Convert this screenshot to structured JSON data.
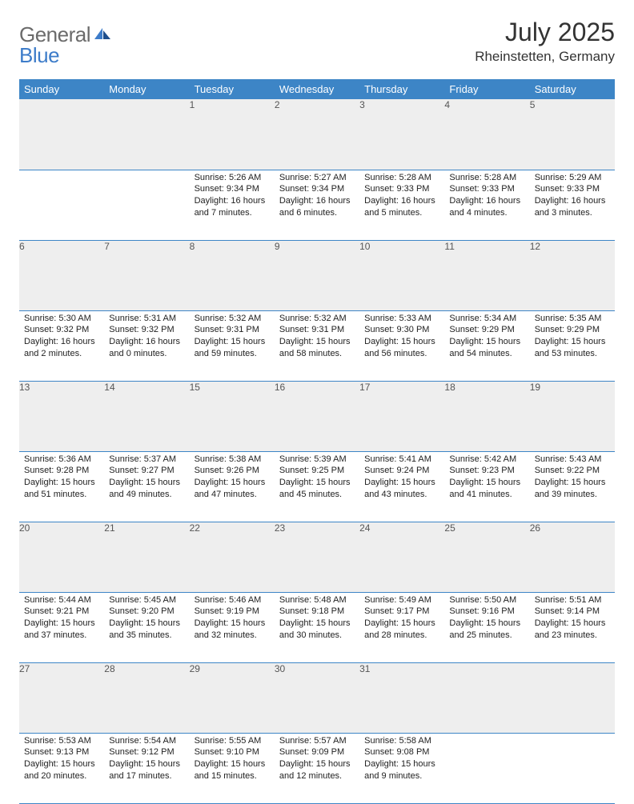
{
  "brand": {
    "part1": "General",
    "part2": "Blue"
  },
  "title": "July 2025",
  "location": "Rheinstetten, Germany",
  "colors": {
    "header_bg": "#3d85c6",
    "header_fg": "#ffffff",
    "daynum_bg": "#eeeeee",
    "daynum_fg": "#555555",
    "rule": "#3d85c6",
    "logo_gray": "#6b6b6b",
    "logo_blue": "#3d7cc9"
  },
  "weekdays": [
    "Sunday",
    "Monday",
    "Tuesday",
    "Wednesday",
    "Thursday",
    "Friday",
    "Saturday"
  ],
  "weeks": [
    [
      null,
      null,
      {
        "n": "1",
        "sr": "5:26 AM",
        "ss": "9:34 PM",
        "dl": "16 hours and 7 minutes."
      },
      {
        "n": "2",
        "sr": "5:27 AM",
        "ss": "9:34 PM",
        "dl": "16 hours and 6 minutes."
      },
      {
        "n": "3",
        "sr": "5:28 AM",
        "ss": "9:33 PM",
        "dl": "16 hours and 5 minutes."
      },
      {
        "n": "4",
        "sr": "5:28 AM",
        "ss": "9:33 PM",
        "dl": "16 hours and 4 minutes."
      },
      {
        "n": "5",
        "sr": "5:29 AM",
        "ss": "9:33 PM",
        "dl": "16 hours and 3 minutes."
      }
    ],
    [
      {
        "n": "6",
        "sr": "5:30 AM",
        "ss": "9:32 PM",
        "dl": "16 hours and 2 minutes."
      },
      {
        "n": "7",
        "sr": "5:31 AM",
        "ss": "9:32 PM",
        "dl": "16 hours and 0 minutes."
      },
      {
        "n": "8",
        "sr": "5:32 AM",
        "ss": "9:31 PM",
        "dl": "15 hours and 59 minutes."
      },
      {
        "n": "9",
        "sr": "5:32 AM",
        "ss": "9:31 PM",
        "dl": "15 hours and 58 minutes."
      },
      {
        "n": "10",
        "sr": "5:33 AM",
        "ss": "9:30 PM",
        "dl": "15 hours and 56 minutes."
      },
      {
        "n": "11",
        "sr": "5:34 AM",
        "ss": "9:29 PM",
        "dl": "15 hours and 54 minutes."
      },
      {
        "n": "12",
        "sr": "5:35 AM",
        "ss": "9:29 PM",
        "dl": "15 hours and 53 minutes."
      }
    ],
    [
      {
        "n": "13",
        "sr": "5:36 AM",
        "ss": "9:28 PM",
        "dl": "15 hours and 51 minutes."
      },
      {
        "n": "14",
        "sr": "5:37 AM",
        "ss": "9:27 PM",
        "dl": "15 hours and 49 minutes."
      },
      {
        "n": "15",
        "sr": "5:38 AM",
        "ss": "9:26 PM",
        "dl": "15 hours and 47 minutes."
      },
      {
        "n": "16",
        "sr": "5:39 AM",
        "ss": "9:25 PM",
        "dl": "15 hours and 45 minutes."
      },
      {
        "n": "17",
        "sr": "5:41 AM",
        "ss": "9:24 PM",
        "dl": "15 hours and 43 minutes."
      },
      {
        "n": "18",
        "sr": "5:42 AM",
        "ss": "9:23 PM",
        "dl": "15 hours and 41 minutes."
      },
      {
        "n": "19",
        "sr": "5:43 AM",
        "ss": "9:22 PM",
        "dl": "15 hours and 39 minutes."
      }
    ],
    [
      {
        "n": "20",
        "sr": "5:44 AM",
        "ss": "9:21 PM",
        "dl": "15 hours and 37 minutes."
      },
      {
        "n": "21",
        "sr": "5:45 AM",
        "ss": "9:20 PM",
        "dl": "15 hours and 35 minutes."
      },
      {
        "n": "22",
        "sr": "5:46 AM",
        "ss": "9:19 PM",
        "dl": "15 hours and 32 minutes."
      },
      {
        "n": "23",
        "sr": "5:48 AM",
        "ss": "9:18 PM",
        "dl": "15 hours and 30 minutes."
      },
      {
        "n": "24",
        "sr": "5:49 AM",
        "ss": "9:17 PM",
        "dl": "15 hours and 28 minutes."
      },
      {
        "n": "25",
        "sr": "5:50 AM",
        "ss": "9:16 PM",
        "dl": "15 hours and 25 minutes."
      },
      {
        "n": "26",
        "sr": "5:51 AM",
        "ss": "9:14 PM",
        "dl": "15 hours and 23 minutes."
      }
    ],
    [
      {
        "n": "27",
        "sr": "5:53 AM",
        "ss": "9:13 PM",
        "dl": "15 hours and 20 minutes."
      },
      {
        "n": "28",
        "sr": "5:54 AM",
        "ss": "9:12 PM",
        "dl": "15 hours and 17 minutes."
      },
      {
        "n": "29",
        "sr": "5:55 AM",
        "ss": "9:10 PM",
        "dl": "15 hours and 15 minutes."
      },
      {
        "n": "30",
        "sr": "5:57 AM",
        "ss": "9:09 PM",
        "dl": "15 hours and 12 minutes."
      },
      {
        "n": "31",
        "sr": "5:58 AM",
        "ss": "9:08 PM",
        "dl": "15 hours and 9 minutes."
      },
      null,
      null
    ]
  ],
  "labels": {
    "sunrise": "Sunrise: ",
    "sunset": "Sunset: ",
    "daylight": "Daylight: "
  }
}
